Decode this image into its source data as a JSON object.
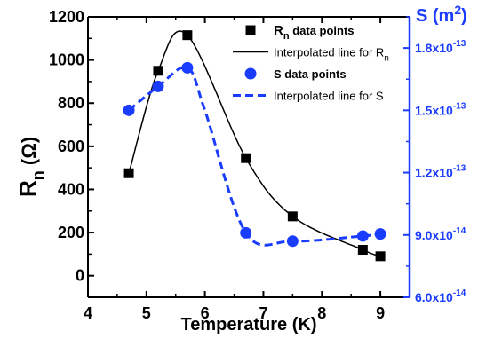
{
  "chart_data": {
    "type": "line",
    "xlabel": "Temperature (K)",
    "ylabel_left_main": "R",
    "ylabel_left_sub": "n",
    "ylabel_left_unit": "(Ω)",
    "ylabel_right_main": "S (m",
    "ylabel_right_sup": "2",
    "ylabel_right_close": ")",
    "xlim": [
      4,
      9.5
    ],
    "ylim_left": [
      -100,
      1200
    ],
    "ylim_right": [
      6e-14,
      1.95e-13
    ],
    "x_ticks": [
      {
        "value": 4,
        "label": "4"
      },
      {
        "value": 5,
        "label": "5"
      },
      {
        "value": 6,
        "label": "6"
      },
      {
        "value": 7,
        "label": "7"
      },
      {
        "value": 8,
        "label": "8"
      },
      {
        "value": 9,
        "label": "9"
      }
    ],
    "y_left_ticks": [
      {
        "value": 0,
        "label": "0"
      },
      {
        "value": 200,
        "label": "200"
      },
      {
        "value": 400,
        "label": "400"
      },
      {
        "value": 600,
        "label": "600"
      },
      {
        "value": 800,
        "label": "800"
      },
      {
        "value": 1000,
        "label": "1000"
      },
      {
        "value": 1200,
        "label": "1200"
      }
    ],
    "y_right_ticks": [
      {
        "value": 6e-14,
        "mant": "6.0x10",
        "exp": "-14"
      },
      {
        "value": 9e-14,
        "mant": "9.0x10",
        "exp": "-14"
      },
      {
        "value": 1.2e-13,
        "mant": "1.2x10",
        "exp": "-13"
      },
      {
        "value": 1.5e-13,
        "mant": "1.5x10",
        "exp": "-13"
      },
      {
        "value": 1.8e-13,
        "mant": "1.8x10",
        "exp": "-13"
      }
    ],
    "series": [
      {
        "name_main": "R",
        "name_sub": "n",
        "name_rest": "  data points",
        "axis": "left",
        "marker": "square",
        "color": "#000000",
        "x": [
          4.7,
          5.2,
          5.7,
          6.7,
          7.5,
          8.7,
          9.0
        ],
        "y": [
          475,
          950,
          1115,
          545,
          275,
          120,
          90
        ]
      },
      {
        "name_main": "Interpolated line for R",
        "name_sub": "n",
        "axis": "left",
        "line": "solid",
        "color": "#000000",
        "x": [
          4.7,
          5.2,
          5.7,
          6.7,
          7.5,
          8.7,
          9.0
        ],
        "y": [
          475,
          950,
          1115,
          545,
          275,
          120,
          90
        ]
      },
      {
        "name_main": "S  data points",
        "axis": "right",
        "marker": "circle",
        "color": "#1a3cff",
        "x": [
          4.7,
          5.2,
          5.7,
          6.7,
          7.5,
          8.7,
          9.0
        ],
        "y": [
          1.5e-13,
          1.615e-13,
          1.705e-13,
          9.1e-14,
          8.7e-14,
          8.95e-14,
          9.05e-14
        ]
      },
      {
        "name_main": "Interpolated line for S",
        "axis": "right",
        "line": "dashed",
        "color": "#1a3cff",
        "x": [
          4.7,
          5.2,
          5.7,
          6.0,
          6.7,
          7.5,
          8.7,
          9.0
        ],
        "y": [
          1.5e-13,
          1.615e-13,
          1.705e-13,
          1.5e-13,
          9.1e-14,
          8.7e-14,
          8.95e-14,
          9.05e-14
        ]
      }
    ],
    "colors": {
      "left_axis": "#000000",
      "right_axis": "#1a3cff"
    },
    "legend_position": "top-right",
    "grid": false
  }
}
